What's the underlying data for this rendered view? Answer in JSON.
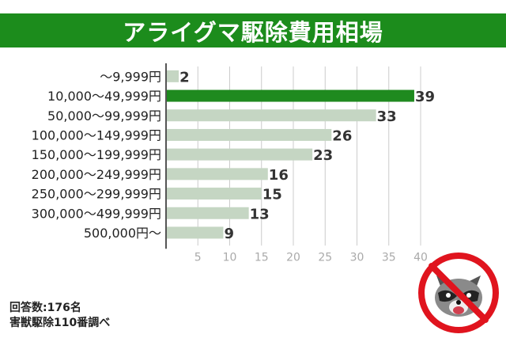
{
  "title": "アライグマ駆除費用相場",
  "chart_data": {
    "type": "bar",
    "orientation": "horizontal",
    "categories": [
      "～9,999円",
      "10,000～49,999円",
      "50,000～99,999円",
      "100,000～149,999円",
      "150,000～199,999円",
      "200,000～249,999円",
      "250,000～299,999円",
      "300,000～499,999円",
      "500,000円～"
    ],
    "values": [
      2,
      39,
      33,
      26,
      23,
      16,
      15,
      13,
      9
    ],
    "highlight_index": 1,
    "xlim": [
      0,
      40
    ],
    "xticks": [
      5,
      10,
      15,
      20,
      25,
      30,
      35,
      40
    ],
    "grid": true,
    "colors": {
      "bar": "#c5d6c3",
      "highlight": "#1f8a1f",
      "grid": "#cccccc",
      "axis": "#555555"
    }
  },
  "notes": {
    "respondents": "回答数:176名",
    "source": "害獣駆除110番調べ"
  },
  "icon": "no-raccoon-icon"
}
